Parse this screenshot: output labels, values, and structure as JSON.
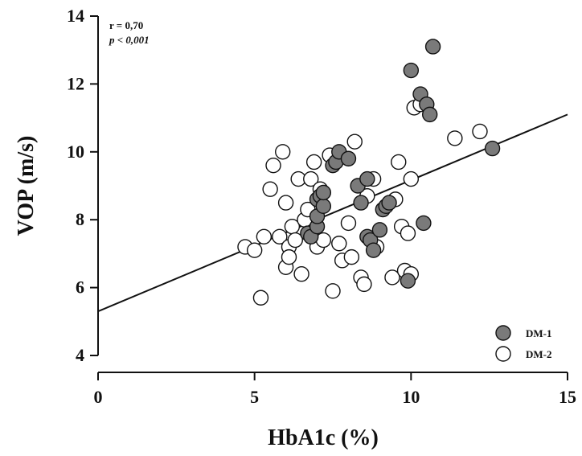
{
  "chart_data": {
    "type": "scatter",
    "title": "",
    "xlabel": "HbA1c (%)",
    "ylabel": "VOP (m/s)",
    "xlim": [
      0,
      15
    ],
    "ylim": [
      4,
      14
    ],
    "x_ticks": [
      0,
      5,
      10,
      15
    ],
    "y_ticks": [
      4,
      6,
      8,
      10,
      12,
      14
    ],
    "x_tick_labels": [
      "0",
      "5",
      "10",
      "15"
    ],
    "y_tick_labels": [
      "4",
      "6",
      "8",
      "10",
      "12",
      "14"
    ],
    "grid": false,
    "legend_position": "bottom-right",
    "annotations": {
      "r": "r = 0,70",
      "p": "p < 0,001"
    },
    "fit_line": {
      "x": [
        0,
        15
      ],
      "y": [
        5.3,
        11.1
      ]
    },
    "series": [
      {
        "name": "DM-1",
        "color": "#7a7a7a",
        "points": [
          [
            6.7,
            7.6
          ],
          [
            6.8,
            7.5
          ],
          [
            7.0,
            7.8
          ],
          [
            7.0,
            8.1
          ],
          [
            7.0,
            8.6
          ],
          [
            7.1,
            8.7
          ],
          [
            7.2,
            8.4
          ],
          [
            7.2,
            8.8
          ],
          [
            7.5,
            9.6
          ],
          [
            7.6,
            9.7
          ],
          [
            7.7,
            10.0
          ],
          [
            8.0,
            9.8
          ],
          [
            8.3,
            9.0
          ],
          [
            8.4,
            8.5
          ],
          [
            8.6,
            9.2
          ],
          [
            8.6,
            7.5
          ],
          [
            8.7,
            7.4
          ],
          [
            8.8,
            7.1
          ],
          [
            9.0,
            7.7
          ],
          [
            9.1,
            8.3
          ],
          [
            9.2,
            8.4
          ],
          [
            9.3,
            8.5
          ],
          [
            9.9,
            6.2
          ],
          [
            10.0,
            12.4
          ],
          [
            10.3,
            11.7
          ],
          [
            10.5,
            11.4
          ],
          [
            10.6,
            11.1
          ],
          [
            10.7,
            13.1
          ],
          [
            10.4,
            7.9
          ],
          [
            12.6,
            10.1
          ]
        ]
      },
      {
        "name": "DM-2",
        "color": "#ffffff",
        "points": [
          [
            4.7,
            7.2
          ],
          [
            5.0,
            7.1
          ],
          [
            5.2,
            5.7
          ],
          [
            5.3,
            7.5
          ],
          [
            5.5,
            8.9
          ],
          [
            5.6,
            9.6
          ],
          [
            5.8,
            7.5
          ],
          [
            5.9,
            10.0
          ],
          [
            6.0,
            8.5
          ],
          [
            6.0,
            6.6
          ],
          [
            6.1,
            7.2
          ],
          [
            6.1,
            6.9
          ],
          [
            6.2,
            7.8
          ],
          [
            6.3,
            7.4
          ],
          [
            6.4,
            9.2
          ],
          [
            6.5,
            6.4
          ],
          [
            6.6,
            8.0
          ],
          [
            6.7,
            8.3
          ],
          [
            6.8,
            9.2
          ],
          [
            6.9,
            9.7
          ],
          [
            7.0,
            7.2
          ],
          [
            7.1,
            8.9
          ],
          [
            7.2,
            7.4
          ],
          [
            7.4,
            9.9
          ],
          [
            7.5,
            5.9
          ],
          [
            7.7,
            7.3
          ],
          [
            7.8,
            6.8
          ],
          [
            8.0,
            7.9
          ],
          [
            8.1,
            6.9
          ],
          [
            8.2,
            10.3
          ],
          [
            8.4,
            6.3
          ],
          [
            8.5,
            6.1
          ],
          [
            8.6,
            8.7
          ],
          [
            8.8,
            9.2
          ],
          [
            8.9,
            7.2
          ],
          [
            9.4,
            6.3
          ],
          [
            9.5,
            8.6
          ],
          [
            9.6,
            9.7
          ],
          [
            9.7,
            7.8
          ],
          [
            9.8,
            6.5
          ],
          [
            9.9,
            7.6
          ],
          [
            10.0,
            6.4
          ],
          [
            10.0,
            9.2
          ],
          [
            10.1,
            11.3
          ],
          [
            10.3,
            11.4
          ],
          [
            11.4,
            10.4
          ],
          [
            12.2,
            10.6
          ]
        ]
      }
    ]
  }
}
